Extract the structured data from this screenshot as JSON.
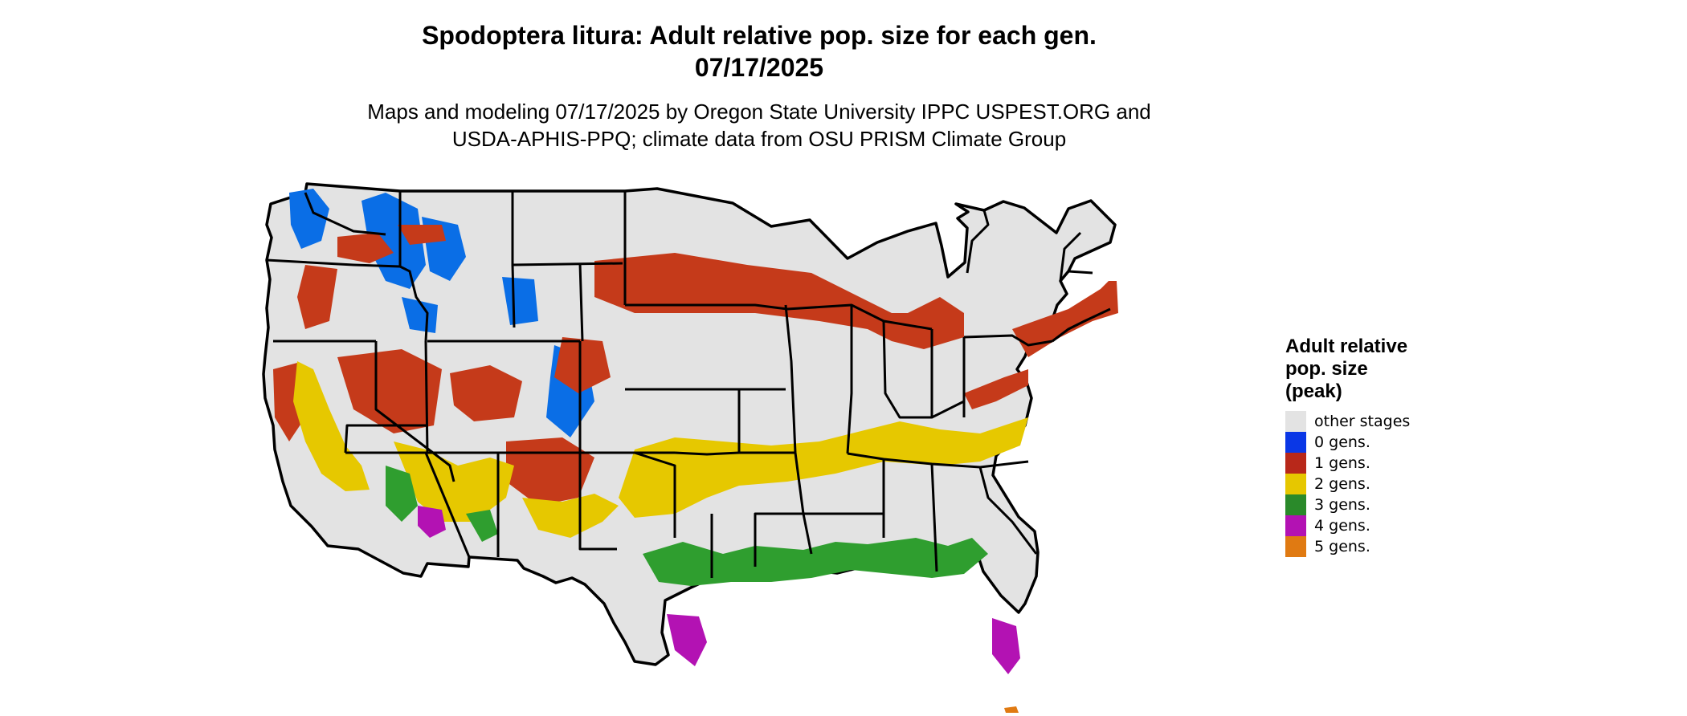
{
  "title": {
    "line1": "Spodoptera litura: Adult relative pop. size for each gen.",
    "line2": "07/17/2025"
  },
  "subtitle": {
    "line1": "Maps and modeling 07/17/2025 by Oregon State University IPPC USPEST.ORG and",
    "line2": "USDA-APHIS-PPQ; climate data from OSU PRISM Climate Group"
  },
  "map": {
    "region": "Contiguous United States",
    "base_color": "#e3e3e3",
    "border_color": "#000000"
  },
  "legend": {
    "title_lines": [
      "Adult relative",
      "pop. size",
      "(peak)"
    ],
    "items": [
      {
        "label": "other stages",
        "color": "#e3e3e3"
      },
      {
        "label": "0 gens.",
        "color": "#0a37e6"
      },
      {
        "label": "1 gens.",
        "color": "#b8281a"
      },
      {
        "label": "2 gens.",
        "color": "#e6c700"
      },
      {
        "label": "3 gens.",
        "color": "#2a8a2a"
      },
      {
        "label": "4 gens.",
        "color": "#b312b3"
      },
      {
        "label": "5 gens.",
        "color": "#e07a12"
      }
    ]
  }
}
